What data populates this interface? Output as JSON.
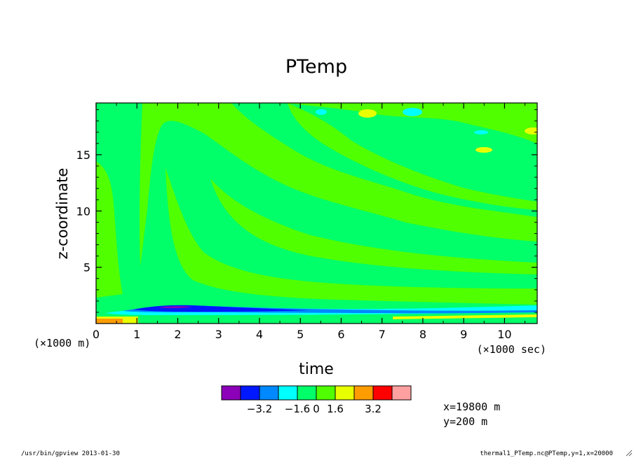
{
  "chart_data": {
    "type": "heatmap",
    "title": "PTemp",
    "xlabel": "time",
    "ylabel": "z-coordinate",
    "x_scale_label": "(×1000 sec)",
    "y_scale_label": "(×1000 m)",
    "xlim": [
      0,
      10.8
    ],
    "ylim": [
      0,
      19.6
    ],
    "x_ticks": [
      "0",
      "1",
      "2",
      "3",
      "4",
      "5",
      "6",
      "7",
      "8",
      "9",
      "10"
    ],
    "y_ticks": [
      "5",
      "10",
      "15"
    ],
    "colorbar": {
      "colors": [
        "#8b00b8",
        "#0018ff",
        "#0088ff",
        "#00ffff",
        "#00ff68",
        "#50ff00",
        "#e8ff00",
        "#ff9c00",
        "#ff0000",
        "#ffa0a0"
      ],
      "labels": [
        "−3.2",
        "−1.6",
        "0",
        "1.6",
        "3.2"
      ]
    },
    "annotations": [
      "x=19800 m",
      "y=200 m"
    ]
  },
  "footer": {
    "left": "/usr/bin/gpview  2013-01-30",
    "right": "thermal1_PTemp.nc@PTemp,y=1,x=20000"
  }
}
